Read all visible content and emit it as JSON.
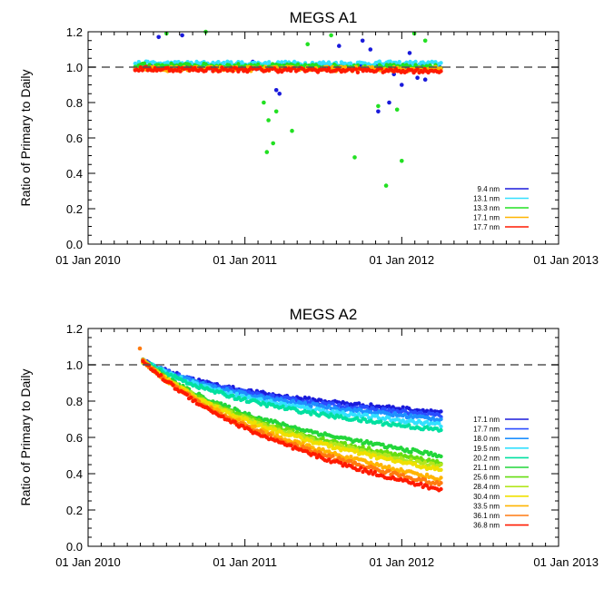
{
  "chart_data": [
    {
      "type": "scatter",
      "title": "MEGS A1",
      "xlabel": "",
      "ylabel": "Ratio of Primary to Daily",
      "xlim": [
        2010.0,
        2013.0
      ],
      "ylim": [
        0.0,
        1.2
      ],
      "xticks": [
        "01 Jan 2010",
        "01 Jan 2011",
        "01 Jan 2012",
        "01 Jan 2013"
      ],
      "yticks": [
        "0.0",
        "0.2",
        "0.4",
        "0.6",
        "0.8",
        "1.0",
        "1.2"
      ],
      "reference_line": {
        "y": 1.0,
        "style": "dashed"
      },
      "x_start": 2010.3,
      "x_end": 2012.25,
      "legend_position": "lower-right",
      "series": [
        {
          "name": "9.4 nm",
          "color": "#1a1adb",
          "start": 1.0,
          "end": 1.0,
          "outliers": [
            [
              2010.45,
              1.17
            ],
            [
              2010.6,
              1.18
            ],
            [
              2011.05,
              1.03
            ],
            [
              2011.2,
              0.87
            ],
            [
              2011.22,
              0.85
            ],
            [
              2011.6,
              1.12
            ],
            [
              2011.75,
              1.15
            ],
            [
              2011.8,
              1.1
            ],
            [
              2011.85,
              0.75
            ],
            [
              2011.92,
              0.8
            ],
            [
              2011.95,
              0.96
            ],
            [
              2012.0,
              0.9
            ],
            [
              2012.05,
              1.08
            ],
            [
              2012.1,
              0.94
            ],
            [
              2012.15,
              0.93
            ]
          ]
        },
        {
          "name": "13.1 nm",
          "color": "#33e0ff",
          "start": 1.02,
          "end": 1.02,
          "outliers": []
        },
        {
          "name": "13.3 nm",
          "color": "#22e022",
          "start": 1.01,
          "end": 1.0,
          "outliers": [
            [
              2010.5,
              1.19
            ],
            [
              2010.75,
              1.2
            ],
            [
              2011.12,
              0.8
            ],
            [
              2011.15,
              0.7
            ],
            [
              2011.14,
              0.52
            ],
            [
              2011.18,
              0.57
            ],
            [
              2011.2,
              0.75
            ],
            [
              2011.3,
              0.64
            ],
            [
              2011.4,
              1.13
            ],
            [
              2011.55,
              1.18
            ],
            [
              2011.7,
              0.49
            ],
            [
              2011.85,
              0.78
            ],
            [
              2011.9,
              0.33
            ],
            [
              2011.97,
              0.76
            ],
            [
              2012.0,
              0.47
            ],
            [
              2012.08,
              1.19
            ],
            [
              2012.15,
              1.15
            ]
          ]
        },
        {
          "name": "17.1 nm",
          "color": "#ffb400",
          "start": 0.99,
          "end": 0.99,
          "outliers": []
        },
        {
          "name": "17.7 nm",
          "color": "#ff1a00",
          "start": 0.99,
          "end": 0.98,
          "outliers": []
        }
      ]
    },
    {
      "type": "scatter",
      "title": "MEGS A2",
      "xlabel": "",
      "ylabel": "Ratio of Primary to Daily",
      "xlim": [
        2010.0,
        2013.0
      ],
      "ylim": [
        0.0,
        1.2
      ],
      "xticks": [
        "01 Jan 2010",
        "01 Jan 2011",
        "01 Jan 2012",
        "01 Jan 2013"
      ],
      "yticks": [
        "0.0",
        "0.2",
        "0.4",
        "0.6",
        "0.8",
        "1.0",
        "1.2"
      ],
      "reference_line": {
        "y": 1.0,
        "style": "dashed"
      },
      "x_start": 2010.35,
      "x_end": 2012.25,
      "legend_position": "lower-right",
      "series": [
        {
          "name": "17.1 nm",
          "color": "#1a1adb",
          "start": 1.02,
          "end": 0.74,
          "outliers": []
        },
        {
          "name": "17.7 nm",
          "color": "#2a4dff",
          "start": 1.02,
          "end": 0.72,
          "outliers": []
        },
        {
          "name": "18.0 nm",
          "color": "#1e90ff",
          "start": 1.02,
          "end": 0.7,
          "outliers": []
        },
        {
          "name": "19.5 nm",
          "color": "#33e0ff",
          "start": 1.02,
          "end": 0.67,
          "outliers": []
        },
        {
          "name": "20.2 nm",
          "color": "#00e0a0",
          "start": 1.02,
          "end": 0.64,
          "outliers": []
        },
        {
          "name": "21.1 nm",
          "color": "#22d63a",
          "start": 1.02,
          "end": 0.5,
          "outliers": []
        },
        {
          "name": "25.6 nm",
          "color": "#66dd11",
          "start": 1.02,
          "end": 0.46,
          "outliers": []
        },
        {
          "name": "28.4 nm",
          "color": "#b4e61e",
          "start": 1.02,
          "end": 0.44,
          "outliers": []
        },
        {
          "name": "30.4 nm",
          "color": "#f0e000",
          "start": 1.02,
          "end": 0.42,
          "outliers": []
        },
        {
          "name": "33.5 nm",
          "color": "#ffb400",
          "start": 1.02,
          "end": 0.37,
          "outliers": []
        },
        {
          "name": "36.1 nm",
          "color": "#ff7a10",
          "start": 1.02,
          "end": 0.34,
          "outliers": [
            [
              2010.33,
              1.09
            ]
          ]
        },
        {
          "name": "36.8 nm",
          "color": "#ff1a00",
          "start": 1.02,
          "end": 0.31,
          "outliers": []
        }
      ]
    }
  ]
}
